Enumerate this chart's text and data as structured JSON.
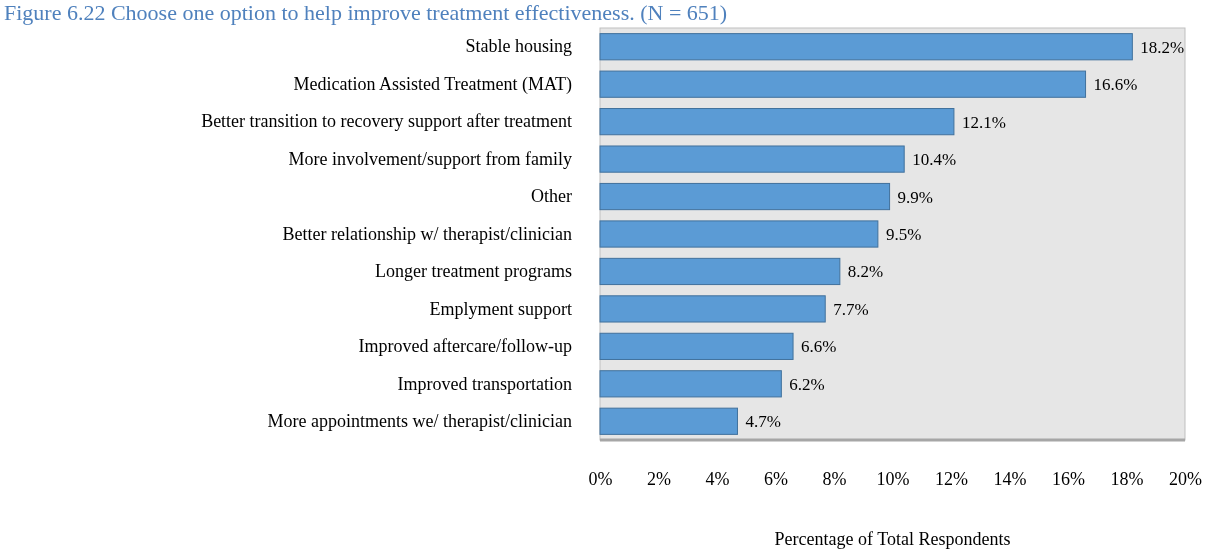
{
  "chart_data": {
    "type": "bar",
    "orientation": "horizontal",
    "title": "Figure 6.22 Choose one option to help improve treatment effectiveness. (N = 651)",
    "categories": [
      "Stable housing",
      "Medication Assisted Treatment (MAT)",
      "Better transition to recovery support after treatment",
      "More involvement/support from family",
      "Other",
      "Better relationship w/ therapist/clinician",
      "Longer treatment programs",
      "Emplyment support",
      "Improved aftercare/follow-up",
      "Improved transportation",
      "More appointments we/ therapist/clinician"
    ],
    "values": [
      18.2,
      16.6,
      12.1,
      10.4,
      9.9,
      9.5,
      8.2,
      7.7,
      6.6,
      6.2,
      4.7
    ],
    "value_labels": [
      "18.2%",
      "16.6%",
      "12.1%",
      "10.4%",
      "9.9%",
      "9.5%",
      "8.2%",
      "7.7%",
      "6.6%",
      "6.2%",
      "4.7%"
    ],
    "color": "#5b9bd5",
    "xlim": [
      0,
      20
    ],
    "xticks": [
      {
        "value": 0,
        "label": "0%"
      },
      {
        "value": 2,
        "label": "2%"
      },
      {
        "value": 4,
        "label": "4%"
      },
      {
        "value": 6,
        "label": "6%"
      },
      {
        "value": 8,
        "label": "8%"
      },
      {
        "value": 10,
        "label": "10%"
      },
      {
        "value": 12,
        "label": "12%"
      },
      {
        "value": 14,
        "label": "14%"
      },
      {
        "value": 16,
        "label": "16%"
      },
      {
        "value": 18,
        "label": "18%"
      },
      {
        "value": 20,
        "label": "20%"
      }
    ],
    "xlabel": "Percentage of Total Respondents",
    "grid": false
  }
}
